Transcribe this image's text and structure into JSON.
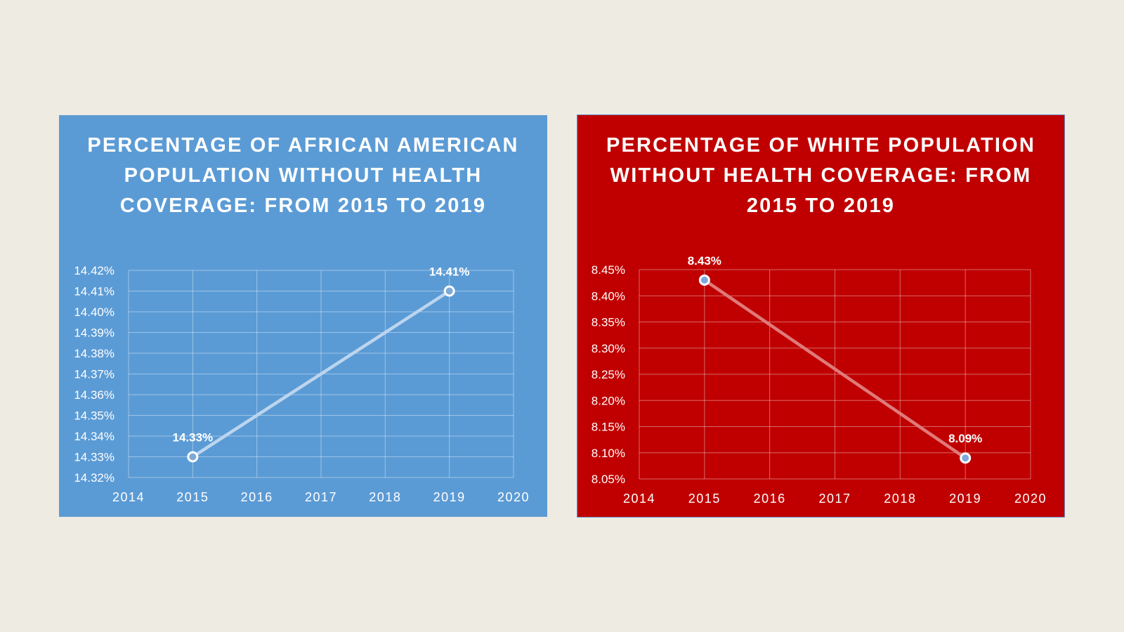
{
  "chart_data": [
    {
      "type": "line",
      "title": "PERCENTAGE OF AFRICAN AMERICAN POPULATION WITHOUT HEALTH COVERAGE: FROM 2015 TO 2019",
      "x": [
        2015,
        2019
      ],
      "series": [
        {
          "values": [
            14.33,
            14.41
          ]
        }
      ],
      "data_labels": [
        "14.33%",
        "14.41%"
      ],
      "xlim": [
        2014,
        2020
      ],
      "ylim": [
        14.32,
        14.42
      ],
      "x_ticks": [
        "2014",
        "2015",
        "2016",
        "2017",
        "2018",
        "2019",
        "2020"
      ],
      "y_ticks": [
        "14.32%",
        "14.33%",
        "14.34%",
        "14.35%",
        "14.36%",
        "14.37%",
        "14.38%",
        "14.39%",
        "14.40%",
        "14.41%",
        "14.42%"
      ],
      "grid": true,
      "background_color": "#5b9bd5",
      "line_color": "#bcd5ee"
    },
    {
      "type": "line",
      "title": "PERCENTAGE OF WHITE POPULATION WITHOUT HEALTH COVERAGE: FROM 2015 TO 2019",
      "x": [
        2015,
        2019
      ],
      "series": [
        {
          "values": [
            8.43,
            8.09
          ]
        }
      ],
      "data_labels": [
        "8.43%",
        "8.09%"
      ],
      "xlim": [
        2014,
        2020
      ],
      "ylim": [
        8.05,
        8.45
      ],
      "x_ticks": [
        "2014",
        "2015",
        "2016",
        "2017",
        "2018",
        "2019",
        "2020"
      ],
      "y_ticks": [
        "8.05%",
        "8.10%",
        "8.15%",
        "8.20%",
        "8.25%",
        "8.30%",
        "8.35%",
        "8.40%",
        "8.45%"
      ],
      "grid": true,
      "background_color": "#c00000",
      "line_color": "#e07a7a"
    }
  ]
}
